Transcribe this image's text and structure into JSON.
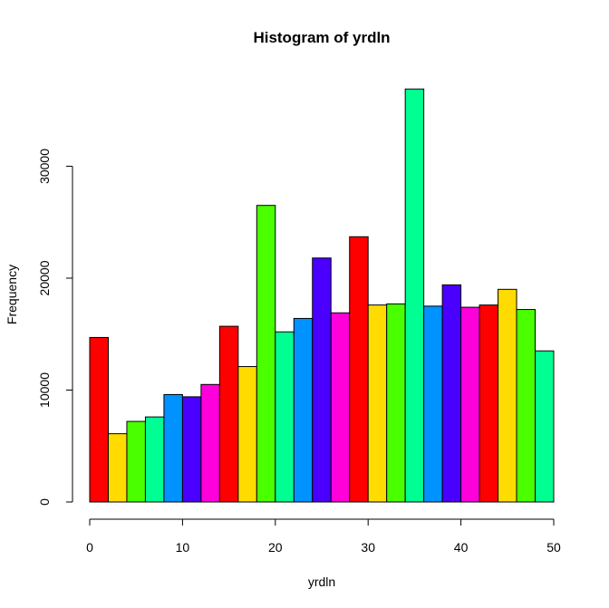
{
  "chart_data": {
    "type": "bar",
    "title": "Histogram of yrdln",
    "xlabel": "yrdln",
    "ylabel": "Frequency",
    "xlim": [
      0,
      50
    ],
    "ylim": [
      0,
      37000
    ],
    "x_ticks": [
      0,
      10,
      20,
      30,
      40,
      50
    ],
    "y_ticks": [
      0,
      10000,
      20000,
      30000
    ],
    "bins": [
      {
        "start": 0,
        "end": 2,
        "value": 14700,
        "color": "#FF0000"
      },
      {
        "start": 2,
        "end": 4,
        "value": 6100,
        "color": "#FFDB00"
      },
      {
        "start": 4,
        "end": 6,
        "value": 7200,
        "color": "#49FF00"
      },
      {
        "start": 6,
        "end": 8,
        "value": 7600,
        "color": "#00FF92"
      },
      {
        "start": 8,
        "end": 10,
        "value": 9600,
        "color": "#0092FF"
      },
      {
        "start": 10,
        "end": 12,
        "value": 9400,
        "color": "#4900FF"
      },
      {
        "start": 12,
        "end": 14,
        "value": 10500,
        "color": "#FF00DB"
      },
      {
        "start": 14,
        "end": 16,
        "value": 15700,
        "color": "#FF0000"
      },
      {
        "start": 16,
        "end": 18,
        "value": 12100,
        "color": "#FFDB00"
      },
      {
        "start": 18,
        "end": 20,
        "value": 26500,
        "color": "#49FF00"
      },
      {
        "start": 20,
        "end": 22,
        "value": 15200,
        "color": "#00FF92"
      },
      {
        "start": 22,
        "end": 24,
        "value": 16400,
        "color": "#0092FF"
      },
      {
        "start": 24,
        "end": 26,
        "value": 21800,
        "color": "#4900FF"
      },
      {
        "start": 26,
        "end": 28,
        "value": 16900,
        "color": "#FF00DB"
      },
      {
        "start": 28,
        "end": 30,
        "value": 23700,
        "color": "#FF0000"
      },
      {
        "start": 30,
        "end": 32,
        "value": 17600,
        "color": "#FFDB00"
      },
      {
        "start": 32,
        "end": 34,
        "value": 17700,
        "color": "#49FF00"
      },
      {
        "start": 34,
        "end": 36,
        "value": 36900,
        "color": "#00FF92"
      },
      {
        "start": 36,
        "end": 38,
        "value": 17500,
        "color": "#0092FF"
      },
      {
        "start": 38,
        "end": 40,
        "value": 19400,
        "color": "#4900FF"
      },
      {
        "start": 40,
        "end": 42,
        "value": 17400,
        "color": "#FF00DB"
      },
      {
        "start": 42,
        "end": 44,
        "value": 17600,
        "color": "#FF0000"
      },
      {
        "start": 44,
        "end": 46,
        "value": 19000,
        "color": "#FFDB00"
      },
      {
        "start": 46,
        "end": 48,
        "value": 17200,
        "color": "#49FF00"
      },
      {
        "start": 48,
        "end": 50,
        "value": 13500,
        "color": "#00FF92"
      }
    ]
  }
}
